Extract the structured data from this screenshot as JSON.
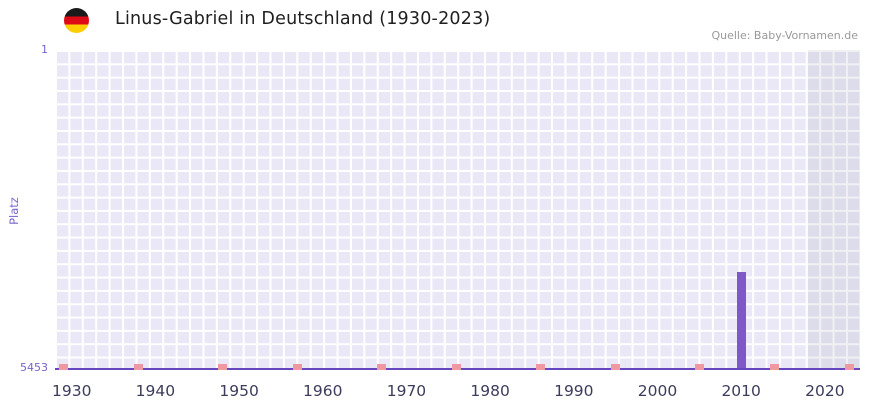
{
  "header": {
    "title": "Linus-Gabriel in Deutschland (1930-2023)",
    "source": "Quelle: Baby-Vornamen.de"
  },
  "chart_data": {
    "type": "bar",
    "title": "Linus-Gabriel in Deutschland (1930-2023)",
    "xlabel": "",
    "ylabel": "Platz",
    "y_axis": {
      "min": 1,
      "max": 5453,
      "inverted": true,
      "ticks": [
        "1",
        "5453"
      ]
    },
    "x_axis": {
      "range": [
        1928,
        2024.2
      ],
      "tick_years": [
        1930,
        1940,
        1950,
        1960,
        1970,
        1980,
        1990,
        2000,
        2010,
        2020
      ]
    },
    "bars": [
      {
        "year": 2010,
        "rank": 3800
      }
    ],
    "bottom_marks": {
      "rank": 5453,
      "years": [
        1929,
        1938,
        1948,
        1957,
        1967,
        1976,
        1986,
        1995,
        2005,
        2014,
        2023
      ]
    },
    "highlight_band": {
      "from": 2018,
      "to": 2024.2
    },
    "grid": true,
    "legend": false,
    "colors": {
      "bar": "#7e57c8",
      "mark": "#ef98a2",
      "plot_bg": "#eae8f6",
      "band": "rgba(98,98,135,0.09)",
      "axis_line": "#6647c0",
      "x_tick_text": "#3c3c5c",
      "y_tick_text": "#7a64ca",
      "title_text": "#1f1f1f",
      "source_text": "#999999",
      "flag": [
        "#1a1a1a",
        "#dd0b15",
        "#ffce00"
      ]
    }
  }
}
